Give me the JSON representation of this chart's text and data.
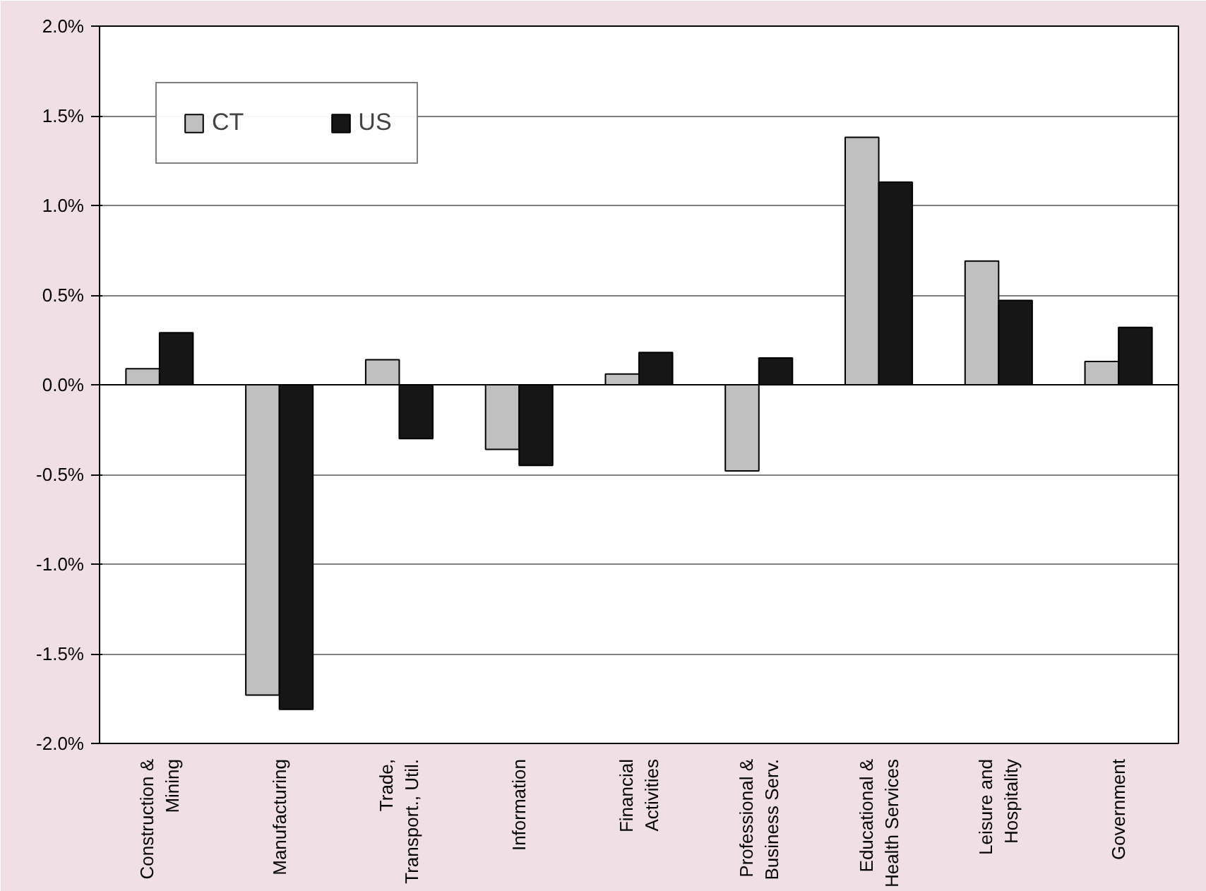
{
  "chart_data": {
    "type": "bar",
    "categories": [
      "Construction &\nMining",
      "Manufacturing",
      "Trade,\nTransport., Util.",
      "Information",
      "Financial\nActivities",
      "Professional &\nBusiness Serv.",
      "Educational &\nHealth Services",
      "Leisure and\nHospitality",
      "Government"
    ],
    "series": [
      {
        "name": "CT",
        "color": "#c0c0c0",
        "values": [
          0.09,
          -1.73,
          0.14,
          -0.36,
          0.06,
          -0.48,
          1.38,
          0.69,
          0.13
        ]
      },
      {
        "name": "US",
        "color": "#161616",
        "values": [
          0.29,
          -1.81,
          -0.3,
          -0.45,
          0.18,
          0.15,
          1.13,
          0.47,
          0.32
        ]
      }
    ],
    "ylim": [
      -2.0,
      2.0
    ],
    "yticks": [
      {
        "value": -2.0,
        "label": "-2.0%"
      },
      {
        "value": -1.5,
        "label": "-1.5%"
      },
      {
        "value": -1.0,
        "label": "-1.0%"
      },
      {
        "value": -0.5,
        "label": "-0.5%"
      },
      {
        "value": 0.0,
        "label": "0.0%"
      },
      {
        "value": 0.5,
        "label": "0.5%"
      },
      {
        "value": 1.0,
        "label": "1.0%"
      },
      {
        "value": 1.5,
        "label": "1.5%"
      },
      {
        "value": 2.0,
        "label": "2.0%"
      }
    ],
    "grid": "y",
    "legend": "top left"
  }
}
